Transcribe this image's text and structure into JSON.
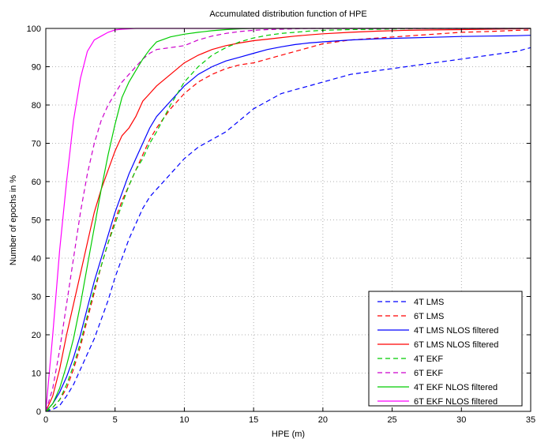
{
  "chart_data": {
    "type": "line",
    "title": "Accumulated distribution function of HPE",
    "xlabel": "HPE (m)",
    "ylabel": "Number of epochs in %",
    "xlim": [
      0,
      35
    ],
    "ylim": [
      0,
      100
    ],
    "xticks": [
      0,
      5,
      10,
      15,
      20,
      25,
      30,
      35
    ],
    "yticks": [
      0,
      10,
      20,
      30,
      40,
      50,
      60,
      70,
      80,
      90,
      100
    ],
    "grid": true,
    "legend_position": "bottom-right",
    "series": [
      {
        "name": "4T LMS",
        "color": "#0000ff",
        "dash": "dashed",
        "x": [
          0,
          0.5,
          1,
          1.5,
          2,
          2.5,
          3,
          3.5,
          4,
          4.5,
          5,
          5.5,
          6,
          6.5,
          7,
          7.5,
          8,
          9,
          10,
          11,
          12,
          13,
          14,
          15,
          16,
          17,
          18,
          19,
          20,
          22,
          24,
          26,
          28,
          30,
          32,
          34,
          35
        ],
        "y": [
          0,
          0.5,
          1.5,
          4,
          7,
          11,
          15,
          19,
          24,
          29,
          35,
          40,
          45,
          49,
          53,
          56,
          58,
          62,
          66,
          69,
          71,
          73,
          76,
          79,
          81,
          83,
          84,
          85,
          86,
          88,
          89,
          90,
          91,
          92,
          93,
          94,
          95
        ]
      },
      {
        "name": "6T LMS",
        "color": "#ff0000",
        "dash": "dashed",
        "x": [
          0,
          0.5,
          1,
          1.5,
          2,
          2.5,
          3,
          3.5,
          4,
          4.5,
          5,
          5.5,
          6,
          6.5,
          7,
          7.5,
          8,
          9,
          10,
          11,
          12,
          13,
          14,
          15,
          16,
          17,
          18,
          19,
          20,
          22,
          24,
          26,
          28,
          30,
          32,
          34,
          35
        ],
        "y": [
          0,
          1,
          3,
          6,
          11,
          17,
          24,
          31,
          38,
          44,
          50,
          55,
          59,
          63,
          67,
          71,
          74,
          79,
          83,
          86,
          88,
          89.5,
          90.5,
          91,
          92,
          93,
          94,
          95,
          96,
          97,
          97.5,
          98,
          98.5,
          99,
          99.2,
          99.5,
          99.6
        ]
      },
      {
        "name": "4T LMS NLOS filtered",
        "color": "#0000ff",
        "dash": "solid",
        "x": [
          0,
          0.5,
          1,
          1.5,
          2,
          2.5,
          3,
          3.5,
          4,
          4.5,
          5,
          5.5,
          6,
          6.5,
          7,
          7.5,
          8,
          9,
          10,
          11,
          12,
          13,
          14,
          15,
          16,
          17,
          18,
          19,
          20,
          22,
          24,
          26,
          28,
          30,
          32,
          34,
          35
        ],
        "y": [
          0,
          2,
          5,
          9,
          14,
          20,
          27,
          34,
          40,
          46,
          52,
          57,
          62,
          66,
          70,
          74,
          77,
          81,
          85,
          88,
          90,
          91.5,
          92.5,
          93.5,
          94.5,
          95.2,
          95.8,
          96.2,
          96.5,
          97,
          97.3,
          97.5,
          97.7,
          97.9,
          98,
          98.1,
          98.2
        ]
      },
      {
        "name": "6T LMS NLOS filtered",
        "color": "#ff0000",
        "dash": "solid",
        "x": [
          0,
          0.5,
          1,
          1.5,
          2,
          2.5,
          3,
          3.5,
          4,
          4.5,
          5,
          5.5,
          6,
          6.5,
          7,
          7.5,
          8,
          9,
          10,
          11,
          12,
          13,
          14,
          15,
          16,
          17,
          18,
          19,
          20,
          22,
          24,
          26,
          28,
          30,
          32,
          34,
          35
        ],
        "y": [
          0,
          4,
          11,
          20,
          28,
          36,
          44,
          52,
          58,
          63,
          68,
          72,
          74,
          77,
          81,
          83,
          85,
          88,
          91,
          93,
          94.5,
          95.5,
          96.2,
          96.8,
          97.2,
          97.6,
          98,
          98.3,
          98.6,
          99,
          99.3,
          99.5,
          99.6,
          99.7,
          99.8,
          99.9,
          100
        ]
      },
      {
        "name": "4T EKF",
        "color": "#00cc00",
        "dash": "dashed",
        "x": [
          0,
          0.5,
          1,
          1.5,
          2,
          2.5,
          3,
          3.5,
          4,
          4.5,
          5,
          5.5,
          6,
          6.5,
          7,
          7.5,
          8,
          9,
          10,
          11,
          12,
          13,
          14,
          15,
          16,
          17,
          18,
          19,
          20,
          22,
          24,
          26,
          28,
          30,
          32,
          34,
          35
        ],
        "y": [
          0,
          1,
          3,
          7,
          12,
          18,
          25,
          32,
          38,
          44,
          49,
          54,
          59,
          63,
          66,
          70,
          73,
          80,
          86,
          90,
          93,
          95,
          96.5,
          97.5,
          98.2,
          98.7,
          99,
          99.3,
          99.5,
          99.7,
          99.8,
          99.9,
          100,
          100,
          100,
          100,
          100
        ]
      },
      {
        "name": "6T EKF",
        "color": "#cc00cc",
        "dash": "dashed",
        "x": [
          0,
          0.5,
          1,
          1.5,
          2,
          2.5,
          3,
          3.5,
          4,
          4.5,
          5,
          5.5,
          6,
          6.5,
          7,
          7.5,
          8,
          9,
          10,
          11,
          12,
          13,
          14,
          15,
          16,
          17,
          18,
          19,
          20,
          22,
          24,
          26,
          28,
          30,
          32,
          34,
          35
        ],
        "y": [
          0,
          6,
          16,
          28,
          40,
          52,
          62,
          70,
          76,
          80,
          83,
          86,
          88,
          90,
          92,
          93.5,
          94.5,
          95,
          95.5,
          97,
          98,
          98.7,
          99.2,
          99.5,
          99.7,
          99.8,
          99.9,
          100,
          100,
          100,
          100,
          100,
          100,
          100,
          100,
          100,
          100
        ]
      },
      {
        "name": "4T EKF NLOS filtered",
        "color": "#00cc00",
        "dash": "solid",
        "x": [
          0,
          0.5,
          1,
          1.5,
          2,
          2.5,
          3,
          3.5,
          4,
          4.5,
          5,
          5.5,
          6,
          6.5,
          7,
          7.5,
          8,
          9,
          10,
          11,
          12,
          13,
          14,
          15,
          16,
          17,
          18,
          19,
          20,
          22,
          24,
          26,
          28,
          30,
          32,
          34,
          35
        ],
        "y": [
          0,
          2,
          6,
          12,
          19,
          28,
          38,
          48,
          58,
          67,
          75,
          82,
          86,
          89,
          92,
          94.5,
          96.5,
          97.8,
          98.5,
          99,
          99.4,
          99.7,
          99.9,
          100,
          100,
          100,
          100,
          100,
          100,
          100,
          100,
          100,
          100,
          100,
          100,
          100,
          100
        ]
      },
      {
        "name": "6T EKF NLOS filtered",
        "color": "#ff00ff",
        "dash": "solid",
        "x": [
          0,
          0.5,
          1,
          1.5,
          2,
          2.5,
          3,
          3.5,
          4,
          4.5,
          5,
          5.5,
          6,
          6.5,
          7,
          7.5,
          8,
          9,
          10,
          11,
          12,
          13,
          14,
          15,
          16,
          17,
          18,
          19,
          20,
          22,
          24,
          26,
          28,
          30,
          32,
          34,
          35
        ],
        "y": [
          0,
          20,
          42,
          60,
          76,
          87,
          94,
          97,
          98,
          99,
          99.6,
          99.8,
          99.9,
          100,
          100,
          100,
          100,
          100,
          100,
          100,
          100,
          100,
          100,
          100,
          100,
          100,
          100,
          100,
          100,
          100,
          100,
          100,
          100,
          100,
          100,
          100,
          100
        ]
      }
    ]
  }
}
